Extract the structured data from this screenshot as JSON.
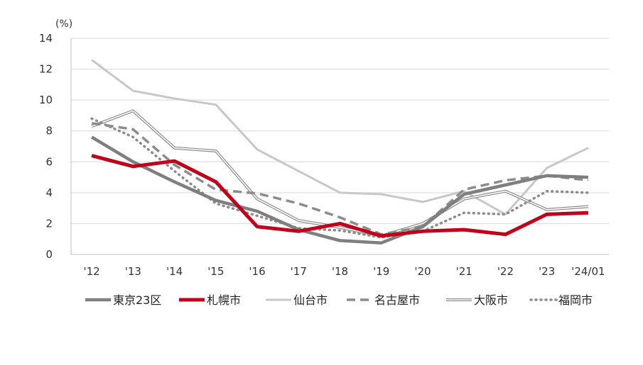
{
  "chart_data": {
    "type": "line",
    "unit_label": "(%)",
    "ylim": [
      0,
      14
    ],
    "y_ticks": [
      "0",
      "2",
      "4",
      "6",
      "8",
      "10",
      "12",
      "14"
    ],
    "categories": [
      "'12",
      "'13",
      "'14",
      "'15",
      "'16",
      "'17",
      "'18",
      "'19",
      "'20",
      "'21",
      "'22",
      "'23",
      "'24/01"
    ],
    "grid": true,
    "legend_position": "bottom",
    "series": [
      {
        "name": "東京23区",
        "style": "solid-thick",
        "color": "#7f7f7f",
        "values": [
          7.6,
          6.0,
          4.7,
          3.5,
          2.8,
          1.6,
          0.9,
          0.75,
          1.8,
          3.9,
          4.5,
          5.1,
          5.0
        ]
      },
      {
        "name": "札幌市",
        "style": "solid-bold",
        "color": "#c0001a",
        "values": [
          6.4,
          5.7,
          6.05,
          4.7,
          1.8,
          1.5,
          2.0,
          1.2,
          1.5,
          1.6,
          1.3,
          2.6,
          2.7
        ]
      },
      {
        "name": "仙台市",
        "style": "solid-light",
        "color": "#c8c8c8",
        "values": [
          12.6,
          10.6,
          10.1,
          9.7,
          6.8,
          5.4,
          4.0,
          3.9,
          3.4,
          4.1,
          2.6,
          5.6,
          6.9
        ]
      },
      {
        "name": "名古屋市",
        "style": "dashed",
        "color": "#8c8c8c",
        "values": [
          8.5,
          8.1,
          5.8,
          4.2,
          3.95,
          3.3,
          2.4,
          1.3,
          1.8,
          4.2,
          4.8,
          5.1,
          4.8
        ]
      },
      {
        "name": "大阪市",
        "style": "double",
        "color": "#8c8c8c",
        "values": [
          8.3,
          9.3,
          6.9,
          6.7,
          3.6,
          2.2,
          1.75,
          1.2,
          2.0,
          3.6,
          4.1,
          2.9,
          3.1
        ]
      },
      {
        "name": "福岡市",
        "style": "dotted",
        "color": "#8c8c8c",
        "values": [
          8.8,
          7.6,
          5.4,
          3.3,
          2.5,
          1.7,
          1.55,
          1.1,
          1.5,
          2.7,
          2.6,
          4.1,
          4.0
        ]
      }
    ]
  }
}
